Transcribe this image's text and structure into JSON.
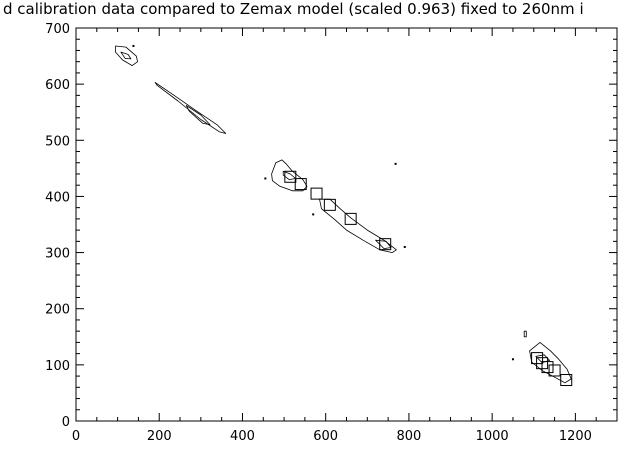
{
  "chart_data": {
    "type": "scatter",
    "title": "d calibration data compared to Zemax model (scaled 0.963) fixed to 260nm i",
    "xlabel": "",
    "ylabel": "",
    "xlim": [
      0,
      1300
    ],
    "ylim": [
      0,
      700
    ],
    "x_ticks": [
      0,
      200,
      400,
      600,
      800,
      1000,
      1200
    ],
    "y_ticks": [
      0,
      100,
      200,
      300,
      400,
      500,
      600,
      700
    ],
    "grid": false,
    "colors": {
      "line": "#000000",
      "background": "#ffffff"
    },
    "model_points": [
      {
        "x": 515,
        "y": 435
      },
      {
        "x": 540,
        "y": 422
      },
      {
        "x": 578,
        "y": 405
      },
      {
        "x": 610,
        "y": 385
      },
      {
        "x": 660,
        "y": 360
      },
      {
        "x": 743,
        "y": 315
      },
      {
        "x": 1108,
        "y": 112
      },
      {
        "x": 1120,
        "y": 103
      },
      {
        "x": 1133,
        "y": 96
      },
      {
        "x": 1150,
        "y": 90
      },
      {
        "x": 1178,
        "y": 73
      }
    ],
    "contours": [
      {
        "points": [
          [
            95,
            668
          ],
          [
            120,
            666
          ],
          [
            145,
            650
          ],
          [
            148,
            640
          ],
          [
            135,
            633
          ],
          [
            112,
            643
          ],
          [
            95,
            657
          ]
        ]
      },
      {
        "points": [
          [
            108,
            657
          ],
          [
            125,
            653
          ],
          [
            132,
            645
          ],
          [
            118,
            646
          ]
        ]
      },
      {
        "points": [
          [
            190,
            603
          ],
          [
            230,
            583
          ],
          [
            290,
            552
          ],
          [
            340,
            527
          ],
          [
            360,
            512
          ],
          [
            345,
            515
          ],
          [
            300,
            537
          ],
          [
            245,
            570
          ],
          [
            195,
            598
          ]
        ]
      },
      {
        "points": [
          [
            265,
            562
          ],
          [
            300,
            545
          ],
          [
            322,
            528
          ],
          [
            305,
            530
          ],
          [
            272,
            552
          ]
        ]
      },
      {
        "points": [
          [
            470,
            440
          ],
          [
            480,
            460
          ],
          [
            495,
            465
          ],
          [
            505,
            458
          ],
          [
            520,
            445
          ],
          [
            545,
            430
          ],
          [
            555,
            418
          ],
          [
            545,
            410
          ],
          [
            520,
            410
          ],
          [
            490,
            418
          ],
          [
            472,
            428
          ]
        ]
      },
      {
        "points": [
          [
            498,
            445
          ],
          [
            515,
            440
          ],
          [
            528,
            432
          ],
          [
            512,
            430
          ],
          [
            498,
            438
          ]
        ]
      },
      {
        "points": [
          [
            585,
            395
          ],
          [
            610,
            395
          ],
          [
            635,
            378
          ],
          [
            660,
            362
          ],
          [
            700,
            340
          ],
          [
            740,
            322
          ],
          [
            770,
            305
          ],
          [
            760,
            300
          ],
          [
            730,
            305
          ],
          [
            690,
            322
          ],
          [
            650,
            340
          ],
          [
            620,
            360
          ],
          [
            590,
            378
          ]
        ]
      },
      {
        "points": [
          [
            720,
            322
          ],
          [
            745,
            320
          ],
          [
            757,
            309
          ],
          [
            740,
            307
          ]
        ]
      },
      {
        "points": [
          [
            1090,
            125
          ],
          [
            1115,
            140
          ],
          [
            1140,
            125
          ],
          [
            1160,
            110
          ],
          [
            1180,
            92
          ],
          [
            1190,
            75
          ],
          [
            1175,
            68
          ],
          [
            1150,
            78
          ],
          [
            1120,
            90
          ],
          [
            1095,
            105
          ]
        ]
      },
      {
        "points": [
          [
            1105,
            115
          ],
          [
            1125,
            118
          ],
          [
            1138,
            108
          ],
          [
            1120,
            104
          ]
        ]
      },
      {
        "points": [
          [
            1077,
            160
          ],
          [
            1082,
            160
          ],
          [
            1082,
            150
          ],
          [
            1077,
            150
          ]
        ]
      }
    ],
    "specks": [
      [
        768,
        458
      ],
      [
        138,
        668
      ],
      [
        455,
        432
      ],
      [
        570,
        368
      ],
      [
        790,
        310
      ],
      [
        1050,
        110
      ]
    ]
  }
}
